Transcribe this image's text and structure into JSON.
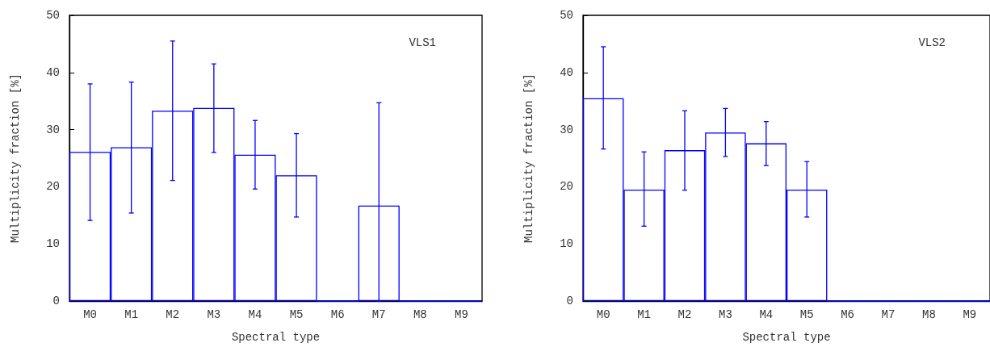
{
  "chart_data": [
    {
      "type": "bar",
      "xlabel": "Spectral type",
      "ylabel": "Multiplicity fraction [%]",
      "annotations": [
        "VLS1"
      ],
      "categories": [
        "M0",
        "M1",
        "M2",
        "M3",
        "M4",
        "M5",
        "M6",
        "M7",
        "M8",
        "M9"
      ],
      "values": [
        26.1,
        26.9,
        33.3,
        33.8,
        25.6,
        22.0,
        0,
        16.7,
        0,
        0
      ],
      "errors": [
        [
          14.1,
          38.0
        ],
        [
          15.4,
          38.3
        ],
        [
          21.1,
          45.5
        ],
        [
          26.0,
          41.5
        ],
        [
          19.6,
          31.6
        ],
        [
          14.7,
          29.3
        ],
        null,
        [
          0,
          34.7
        ],
        null,
        null
      ],
      "color": "#0000ff",
      "ylim": [
        0,
        50
      ],
      "yticks": [
        0,
        10,
        20,
        30,
        40,
        50
      ]
    },
    {
      "type": "bar",
      "xlabel": "Spectral type",
      "ylabel": "Multiplicity fraction [%]",
      "annotations": [
        "VLS2"
      ],
      "categories": [
        "M0",
        "M1",
        "M2",
        "M3",
        "M4",
        "M5",
        "M6",
        "M7",
        "M8",
        "M9"
      ],
      "values": [
        35.5,
        19.5,
        26.4,
        29.5,
        27.6,
        19.5,
        0,
        0,
        0,
        0
      ],
      "errors": [
        [
          26.6,
          44.5
        ],
        [
          13.1,
          26.1
        ],
        [
          19.4,
          33.3
        ],
        [
          25.3,
          33.7
        ],
        [
          23.7,
          31.4
        ],
        [
          14.7,
          24.4
        ],
        null,
        null,
        null,
        null
      ],
      "color": "#0000ff",
      "ylim": [
        0,
        50
      ],
      "yticks": [
        0,
        10,
        20,
        30,
        40,
        50
      ]
    }
  ]
}
